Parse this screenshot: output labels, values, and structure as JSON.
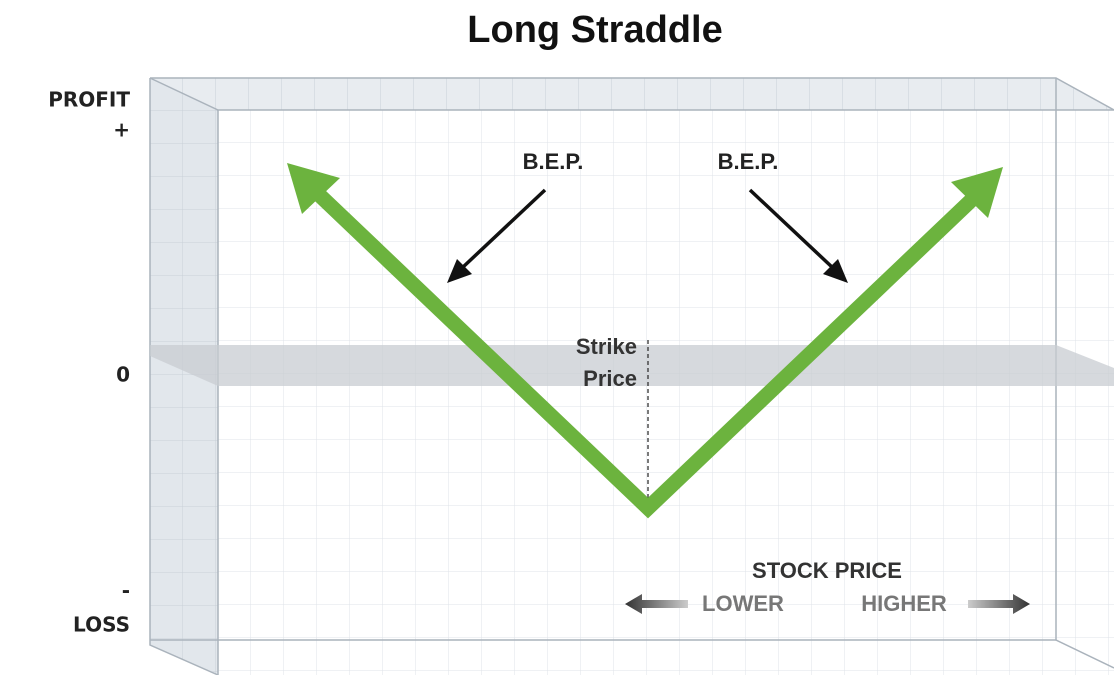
{
  "title": "Long Straddle",
  "y_axis": {
    "top": "PROFIT",
    "plus": "+",
    "zero": "0",
    "minus": "-",
    "bottom": "LOSS"
  },
  "annotations": {
    "bep_left": "B.E.P.",
    "bep_right": "B.E.P.",
    "strike_line1": "Strike",
    "strike_line2": "Price"
  },
  "x_axis": {
    "title": "STOCK PRICE",
    "lower": "LOWER",
    "higher": "HIGHER"
  }
}
